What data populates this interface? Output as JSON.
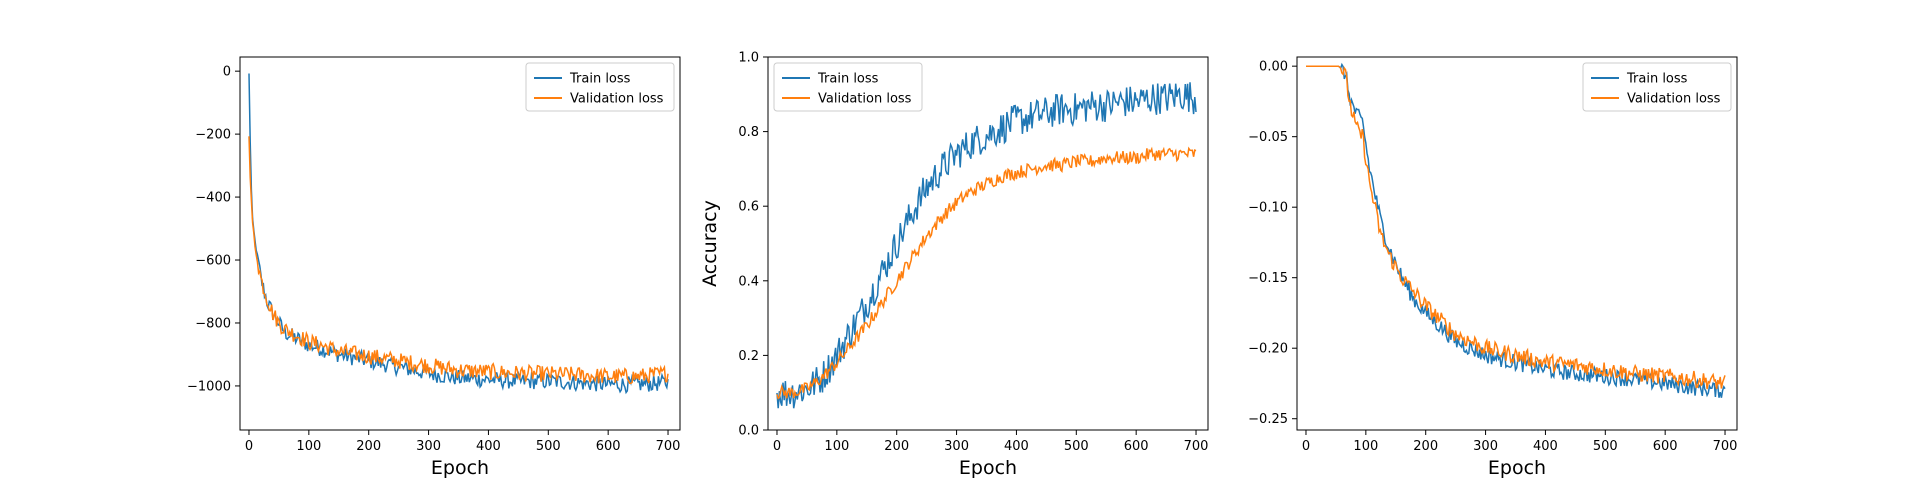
{
  "chart_data": [
    {
      "type": "line",
      "xlabel": "Epoch",
      "ylabel": "",
      "xlim": [
        -15,
        720
      ],
      "ylim": [
        -1140,
        45
      ],
      "xticks": [
        0,
        100,
        200,
        300,
        400,
        500,
        600,
        700
      ],
      "yticks": [
        0,
        -200,
        -400,
        -600,
        -800,
        -1000
      ],
      "ytick_labels": [
        "0",
        "−200",
        "−400",
        "−600",
        "−800",
        "−1000"
      ],
      "legend": "top-right",
      "grid": false,
      "series": [
        {
          "name": "Train loss",
          "color": "#1f77b4",
          "x": [
            0,
            2,
            5,
            10,
            20,
            30,
            40,
            50,
            60,
            80,
            100,
            120,
            150,
            200,
            250,
            300,
            350,
            400,
            450,
            500,
            550,
            600,
            650,
            700
          ],
          "y": [
            -10,
            -220,
            -460,
            -540,
            -660,
            -730,
            -770,
            -800,
            -830,
            -850,
            -870,
            -880,
            -900,
            -920,
            -940,
            -960,
            -975,
            -980,
            -985,
            -985,
            -990,
            -995,
            -995,
            -990
          ]
        },
        {
          "name": "Validation loss",
          "color": "#ff7f0e",
          "x": [
            0,
            2,
            5,
            10,
            20,
            30,
            40,
            50,
            60,
            80,
            100,
            120,
            150,
            200,
            250,
            300,
            350,
            400,
            450,
            500,
            550,
            600,
            650,
            700
          ],
          "y": [
            -200,
            -330,
            -460,
            -560,
            -660,
            -720,
            -770,
            -800,
            -820,
            -840,
            -860,
            -870,
            -890,
            -905,
            -920,
            -935,
            -950,
            -955,
            -960,
            -962,
            -965,
            -970,
            -970,
            -960
          ]
        }
      ]
    },
    {
      "type": "line",
      "xlabel": "Epoch",
      "ylabel": "Accuracy",
      "xlim": [
        -15,
        720
      ],
      "ylim": [
        0.0,
        1.0
      ],
      "xticks": [
        0,
        100,
        200,
        300,
        400,
        500,
        600,
        700
      ],
      "yticks": [
        0.0,
        0.2,
        0.4,
        0.6,
        0.8,
        1.0
      ],
      "ytick_labels": [
        "0.0",
        "0.2",
        "0.4",
        "0.6",
        "0.8",
        "1.0"
      ],
      "legend": "top-left",
      "grid": false,
      "series": [
        {
          "name": "Train loss",
          "color": "#1f77b4",
          "x": [
            0,
            25,
            50,
            75,
            100,
            125,
            150,
            175,
            200,
            225,
            250,
            275,
            300,
            325,
            350,
            375,
            400,
            425,
            450,
            475,
            500,
            525,
            550,
            575,
            600,
            625,
            650,
            675,
            700
          ],
          "y": [
            0.1,
            0.1,
            0.11,
            0.14,
            0.2,
            0.27,
            0.34,
            0.42,
            0.5,
            0.58,
            0.65,
            0.7,
            0.74,
            0.77,
            0.79,
            0.81,
            0.83,
            0.84,
            0.85,
            0.86,
            0.86,
            0.87,
            0.87,
            0.88,
            0.88,
            0.89,
            0.89,
            0.9,
            0.89
          ]
        },
        {
          "name": "Validation loss",
          "color": "#ff7f0e",
          "x": [
            0,
            25,
            50,
            75,
            100,
            125,
            150,
            175,
            200,
            225,
            250,
            275,
            300,
            325,
            350,
            375,
            400,
            425,
            450,
            475,
            500,
            525,
            550,
            575,
            600,
            625,
            650,
            675,
            700
          ],
          "y": [
            0.1,
            0.1,
            0.11,
            0.14,
            0.18,
            0.23,
            0.28,
            0.34,
            0.4,
            0.46,
            0.52,
            0.57,
            0.61,
            0.64,
            0.66,
            0.68,
            0.69,
            0.7,
            0.71,
            0.71,
            0.72,
            0.72,
            0.73,
            0.73,
            0.73,
            0.74,
            0.74,
            0.74,
            0.74
          ]
        }
      ]
    },
    {
      "type": "line",
      "xlabel": "Epoch",
      "ylabel": "",
      "xlim": [
        -15,
        720
      ],
      "ylim": [
        -0.258,
        0.0065
      ],
      "xticks": [
        0,
        100,
        200,
        300,
        400,
        500,
        600,
        700
      ],
      "yticks": [
        0.0,
        -0.05,
        -0.1,
        -0.15,
        -0.2,
        -0.25
      ],
      "ytick_labels": [
        "0.00",
        "−0.05",
        "−0.10",
        "−0.15",
        "−0.20",
        "−0.25"
      ],
      "legend": "top-right",
      "grid": false,
      "series": [
        {
          "name": "Train loss",
          "color": "#1f77b4",
          "x": [
            0,
            40,
            55,
            65,
            75,
            85,
            95,
            105,
            115,
            125,
            140,
            160,
            180,
            200,
            250,
            300,
            350,
            400,
            450,
            500,
            550,
            600,
            650,
            700
          ],
          "y": [
            0.0,
            0.0,
            0.0,
            -0.005,
            -0.025,
            -0.035,
            -0.04,
            -0.07,
            -0.09,
            -0.11,
            -0.13,
            -0.15,
            -0.165,
            -0.175,
            -0.195,
            -0.205,
            -0.21,
            -0.215,
            -0.218,
            -0.22,
            -0.222,
            -0.225,
            -0.228,
            -0.23
          ]
        },
        {
          "name": "Validation loss",
          "color": "#ff7f0e",
          "x": [
            0,
            40,
            55,
            65,
            75,
            85,
            95,
            105,
            115,
            125,
            140,
            160,
            180,
            200,
            250,
            300,
            350,
            400,
            450,
            500,
            550,
            600,
            650,
            700
          ],
          "y": [
            0.0,
            0.0,
            0.0,
            -0.005,
            -0.03,
            -0.045,
            -0.05,
            -0.08,
            -0.1,
            -0.12,
            -0.135,
            -0.15,
            -0.16,
            -0.17,
            -0.19,
            -0.2,
            -0.205,
            -0.21,
            -0.212,
            -0.215,
            -0.218,
            -0.22,
            -0.222,
            -0.225
          ]
        }
      ]
    }
  ]
}
